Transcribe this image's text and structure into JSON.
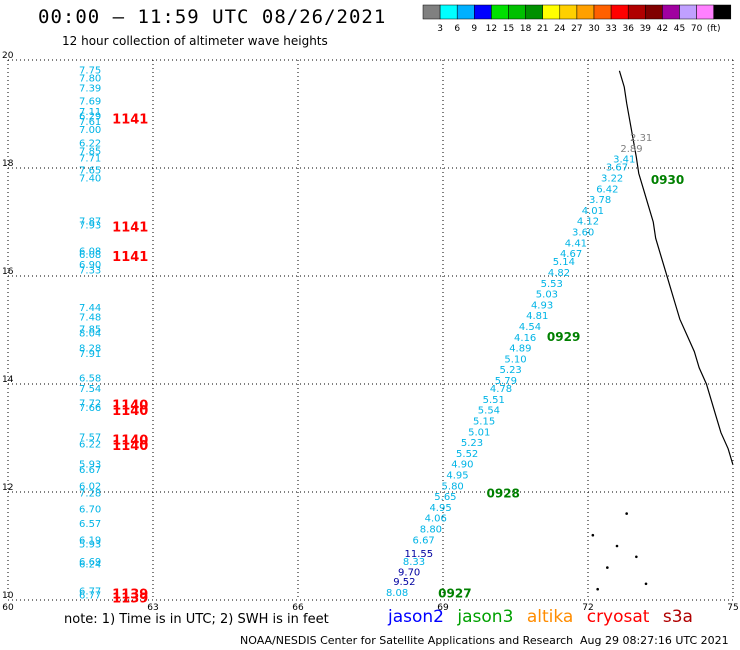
{
  "title": "00:00 – 11:59 UTC 08/26/2021",
  "subtitle": "12 hour collection of altimeter wave heights",
  "colorbar": {
    "labels": [
      "3",
      "6",
      "9",
      "12",
      "15",
      "18",
      "21",
      "24",
      "27",
      "30",
      "33",
      "36",
      "39",
      "42",
      "45",
      "70",
      "(ft)"
    ],
    "colors": [
      "#808080",
      "#00ffff",
      "#00b0ff",
      "#0000ff",
      "#00e000",
      "#00c000",
      "#009000",
      "#ffff00",
      "#ffd000",
      "#ffa000",
      "#ff6000",
      "#ff0000",
      "#b00000",
      "#800000",
      "#a000a0",
      "#c0a0ff",
      "#ff80ff",
      "#000000"
    ]
  },
  "axes": {
    "x_ticks": [
      "60",
      "63",
      "66",
      "69",
      "72",
      "75"
    ],
    "y_ticks": [
      "10",
      "12",
      "14",
      "16",
      "18",
      "20"
    ],
    "x_range": [
      60,
      75
    ],
    "y_range": [
      10,
      20
    ]
  },
  "colors": {
    "cryosat": "#ff0000",
    "jason3": "#008000",
    "jason2": "#0000ff",
    "altika": "#ff8c00",
    "wave_light": "#00b4e6",
    "wave_dark": "#0000a0",
    "wave_gray": "#808080"
  },
  "footer": {
    "note": "note:  1) Time is in UTC;  2) SWH is in feet",
    "satellites": [
      {
        "name": "jason2",
        "color": "#0000ff"
      },
      {
        "name": "jason3",
        "color": "#00a000"
      },
      {
        "name": "altika",
        "color": "#ff8c00"
      },
      {
        "name": "cryosat",
        "color": "#ff0000"
      },
      {
        "name": "s3a",
        "color": "#b00000"
      }
    ],
    "credit": "NOAA/NESDIS Center for Satellite Applications and Research",
    "timestamp": "Aug 29 08:27:16 UTC 2021"
  },
  "track_west": {
    "lon": 61.7,
    "values": [
      {
        "lat": 19.75,
        "v": "7.75"
      },
      {
        "lat": 19.6,
        "v": "7.80"
      },
      {
        "lat": 19.42,
        "v": "7.39"
      },
      {
        "lat": 19.18,
        "v": "7.69"
      },
      {
        "lat": 18.98,
        "v": "7.11"
      },
      {
        "lat": 18.9,
        "v": "6.29"
      },
      {
        "lat": 18.8,
        "v": "7.61"
      },
      {
        "lat": 18.65,
        "v": "7.00"
      },
      {
        "lat": 18.4,
        "v": "6.22"
      },
      {
        "lat": 18.25,
        "v": "7.85"
      },
      {
        "lat": 18.12,
        "v": "7.71"
      },
      {
        "lat": 17.9,
        "v": "7.65"
      },
      {
        "lat": 17.75,
        "v": "7.40"
      },
      {
        "lat": 16.95,
        "v": "7.87"
      },
      {
        "lat": 16.88,
        "v": "7.93"
      },
      {
        "lat": 16.4,
        "v": "6.08"
      },
      {
        "lat": 16.33,
        "v": "6.08"
      },
      {
        "lat": 16.15,
        "v": "6.90"
      },
      {
        "lat": 16.05,
        "v": "7.33"
      },
      {
        "lat": 15.35,
        "v": "7.44"
      },
      {
        "lat": 15.18,
        "v": "7.48"
      },
      {
        "lat": 14.95,
        "v": "7.85"
      },
      {
        "lat": 14.88,
        "v": "8.04"
      },
      {
        "lat": 14.6,
        "v": "8.28"
      },
      {
        "lat": 14.5,
        "v": "7.91"
      },
      {
        "lat": 14.05,
        "v": "6.58"
      },
      {
        "lat": 13.85,
        "v": "7.54"
      },
      {
        "lat": 13.58,
        "v": "7.72"
      },
      {
        "lat": 13.5,
        "v": "7.66"
      },
      {
        "lat": 12.95,
        "v": "7.57"
      },
      {
        "lat": 12.82,
        "v": "6.22"
      },
      {
        "lat": 12.45,
        "v": "5.93"
      },
      {
        "lat": 12.35,
        "v": "6.67"
      },
      {
        "lat": 12.05,
        "v": "6.02"
      },
      {
        "lat": 11.92,
        "v": "7.28"
      },
      {
        "lat": 11.62,
        "v": "6.70"
      },
      {
        "lat": 11.35,
        "v": "6.57"
      },
      {
        "lat": 11.05,
        "v": "6.19"
      },
      {
        "lat": 10.97,
        "v": "5.93"
      },
      {
        "lat": 10.65,
        "v": "6.69"
      },
      {
        "lat": 10.6,
        "v": "6.24"
      },
      {
        "lat": 10.1,
        "v": "6.77"
      },
      {
        "lat": 10.03,
        "v": "6.77"
      }
    ],
    "times": [
      {
        "lat": 18.9,
        "t": "1141"
      },
      {
        "lat": 16.9,
        "t": "1141"
      },
      {
        "lat": 16.35,
        "t": "1141"
      },
      {
        "lat": 13.6,
        "t": "1140"
      },
      {
        "lat": 13.5,
        "t": "1140"
      },
      {
        "lat": 12.95,
        "t": "1140"
      },
      {
        "lat": 12.85,
        "t": "1140"
      },
      {
        "lat": 10.1,
        "t": "1139"
      },
      {
        "lat": 10.03,
        "t": "1139"
      }
    ]
  },
  "track_east": {
    "values": [
      {
        "lat": 18.5,
        "lon": 73.1,
        "v": "2.31",
        "c": "gray"
      },
      {
        "lat": 18.3,
        "lon": 72.9,
        "v": "2.89",
        "c": "gray"
      },
      {
        "lat": 18.1,
        "lon": 72.75,
        "v": "3.41"
      },
      {
        "lat": 17.95,
        "lon": 72.6,
        "v": "3.67"
      },
      {
        "lat": 17.75,
        "lon": 72.5,
        "v": "3.22"
      },
      {
        "lat": 17.55,
        "lon": 72.4,
        "v": "6.42"
      },
      {
        "lat": 17.35,
        "lon": 72.25,
        "v": "3.78"
      },
      {
        "lat": 17.15,
        "lon": 72.1,
        "v": "4.01"
      },
      {
        "lat": 16.95,
        "lon": 72.0,
        "v": "4.12"
      },
      {
        "lat": 16.75,
        "lon": 71.9,
        "v": "3.60"
      },
      {
        "lat": 16.55,
        "lon": 71.75,
        "v": "4.41"
      },
      {
        "lat": 16.35,
        "lon": 71.65,
        "v": "4.67"
      },
      {
        "lat": 16.2,
        "lon": 71.5,
        "v": "5.14"
      },
      {
        "lat": 16.0,
        "lon": 71.4,
        "v": "4.82"
      },
      {
        "lat": 15.8,
        "lon": 71.25,
        "v": "5.53"
      },
      {
        "lat": 15.6,
        "lon": 71.15,
        "v": "5.03"
      },
      {
        "lat": 15.4,
        "lon": 71.05,
        "v": "4.93"
      },
      {
        "lat": 15.2,
        "lon": 70.95,
        "v": "4.81"
      },
      {
        "lat": 15.0,
        "lon": 70.8,
        "v": "4.54"
      },
      {
        "lat": 14.8,
        "lon": 70.7,
        "v": "4.16"
      },
      {
        "lat": 14.6,
        "lon": 70.6,
        "v": "4.89"
      },
      {
        "lat": 14.4,
        "lon": 70.5,
        "v": "5.10"
      },
      {
        "lat": 14.2,
        "lon": 70.4,
        "v": "5.23"
      },
      {
        "lat": 14.0,
        "lon": 70.3,
        "v": "5.79"
      },
      {
        "lat": 13.85,
        "lon": 70.2,
        "v": "4.78"
      },
      {
        "lat": 13.65,
        "lon": 70.05,
        "v": "5.51"
      },
      {
        "lat": 13.45,
        "lon": 69.95,
        "v": "5.54"
      },
      {
        "lat": 13.25,
        "lon": 69.85,
        "v": "5.15"
      },
      {
        "lat": 13.05,
        "lon": 69.75,
        "v": "5.01"
      },
      {
        "lat": 12.85,
        "lon": 69.6,
        "v": "5.23"
      },
      {
        "lat": 12.65,
        "lon": 69.5,
        "v": "5.52"
      },
      {
        "lat": 12.45,
        "lon": 69.4,
        "v": "4.90"
      },
      {
        "lat": 12.25,
        "lon": 69.3,
        "v": "4.95"
      },
      {
        "lat": 12.05,
        "lon": 69.2,
        "v": "5.80"
      },
      {
        "lat": 11.85,
        "lon": 69.05,
        "v": "5.65"
      },
      {
        "lat": 11.65,
        "lon": 68.95,
        "v": "4.95"
      },
      {
        "lat": 11.45,
        "lon": 68.85,
        "v": "4.06"
      },
      {
        "lat": 11.25,
        "lon": 68.75,
        "v": "8.80"
      },
      {
        "lat": 11.05,
        "lon": 68.6,
        "v": "6.67"
      },
      {
        "lat": 10.8,
        "lon": 68.5,
        "v": "11.55",
        "c": "dark"
      },
      {
        "lat": 10.65,
        "lon": 68.4,
        "v": "8.33"
      },
      {
        "lat": 10.45,
        "lon": 68.3,
        "v": "9.70",
        "c": "dark"
      },
      {
        "lat": 10.28,
        "lon": 68.2,
        "v": "9.52",
        "c": "dark"
      },
      {
        "lat": 10.07,
        "lon": 68.05,
        "v": "8.08"
      }
    ],
    "times": [
      {
        "lat": 17.7,
        "lon": 73.3,
        "t": "0930"
      },
      {
        "lat": 14.8,
        "lon": 71.15,
        "t": "0929"
      },
      {
        "lat": 11.9,
        "lon": 69.9,
        "t": "0928"
      },
      {
        "lat": 10.05,
        "lon": 68.9,
        "t": "0927"
      }
    ]
  }
}
